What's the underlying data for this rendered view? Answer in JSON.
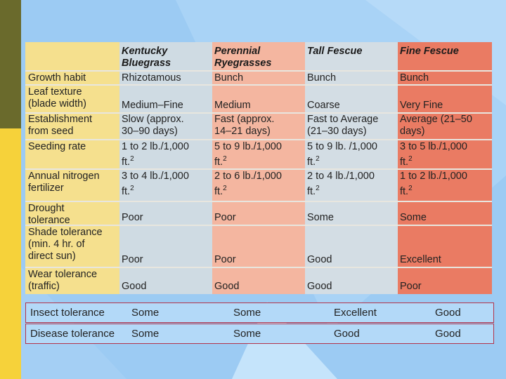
{
  "table": {
    "headers": [
      "",
      "Kentucky\nBluegrass",
      "Perennial\nRyegrasses",
      "Tall Fescue",
      "Fine Fescue"
    ],
    "rows": [
      {
        "label": "Growth habit",
        "cells": [
          "Rhizotamous",
          "Bunch",
          "Bunch",
          "Bunch"
        ]
      },
      {
        "label": "Leaf texture\n(blade width)",
        "cells": [
          "Medium–Fine",
          "Medium",
          "Coarse",
          "Very Fine"
        ]
      },
      {
        "label": "Establishment\nfrom seed",
        "cells": [
          "Slow (approx.\n30–90 days)",
          "Fast (approx.\n14–21 days)",
          "Fast to Average\n(21–30 days)",
          "Average (21–50\ndays)"
        ]
      },
      {
        "label": "Seeding rate",
        "cells": [
          "1 to 2 lb./1,000\nft.²",
          "5 to 9 lb./1,000\nft.²",
          "5 to 9 lb. /1,000\nft.²",
          "3 to 5 lb./1,000\nft.²"
        ]
      },
      {
        "label": "Annual nitrogen\nfertilizer",
        "cells": [
          "3 to 4 lb./1,000\nft.²",
          "2 to 6 lb./1,000\nft.²",
          "2 to 4 lb./1,000\nft.²",
          "1 to 2 lb./1,000\nft.²"
        ]
      },
      {
        "label": "Drought\ntolerance",
        "cells": [
          "Poor",
          "Poor",
          "Some",
          "Some"
        ]
      },
      {
        "label": "Shade tolerance\n(min. 4 hr. of\ndirect sun)",
        "cells": [
          "Poor",
          "Poor",
          "Good",
          "Excellent"
        ]
      },
      {
        "label": "Wear tolerance\n(traffic)",
        "cells": [
          "Good",
          "Good",
          "Good",
          "Poor"
        ]
      }
    ]
  },
  "extra_rows": [
    {
      "label": "Insect tolerance",
      "cells": [
        "Some",
        "Some",
        "Excellent",
        "Good"
      ]
    },
    {
      "label": "Disease tolerance",
      "cells": [
        "Some",
        "Some",
        "Good",
        "Good"
      ]
    }
  ],
  "colors": {
    "background": "#9ccbf3",
    "col_label": "#f5e08e",
    "col_kentucky": "#cfdbe3",
    "col_perennial": "#f4b6a0",
    "col_tall": "#d3dde4",
    "col_fine": "#ea7b63"
  }
}
